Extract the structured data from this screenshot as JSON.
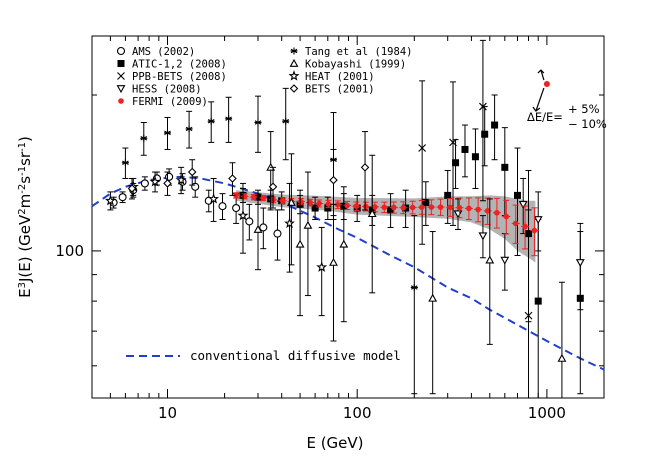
{
  "chart_data": {
    "type": "scatter",
    "title": "",
    "xlabel": "E (GeV)",
    "ylabel": "E³J(E) (GeV²m⁻²s⁻¹sr⁻¹)",
    "ylabel_parts": [
      "E",
      "3",
      "J(E)  (GeV",
      "2",
      "m",
      "-2",
      "s",
      "-1",
      "sr",
      "-1",
      ")"
    ],
    "xscale": "log",
    "yscale": "log",
    "xlim": [
      4,
      2000
    ],
    "ylim": [
      52,
      260
    ],
    "xticks": [
      {
        "value": 10,
        "label": "10"
      },
      {
        "value": 100,
        "label": "100"
      },
      {
        "value": 1000,
        "label": "1000"
      }
    ],
    "yticks": [
      {
        "value": 100,
        "label": "100"
      }
    ],
    "grid": false,
    "legend_position": "top-left",
    "series": [
      {
        "name": "AMS (2002)",
        "marker": "open-circle",
        "color": "#000000",
        "points": [
          [
            5.2,
            124,
            3
          ],
          [
            5.8,
            127,
            3
          ],
          [
            6.6,
            131,
            4
          ],
          [
            7.6,
            135,
            4
          ],
          [
            8.8,
            138,
            4
          ],
          [
            10.2,
            139,
            5
          ],
          [
            12,
            136,
            5
          ],
          [
            14,
            133,
            6
          ],
          [
            16.5,
            125,
            6
          ],
          [
            19.5,
            122,
            7
          ],
          [
            23,
            121,
            8
          ],
          [
            27,
            114,
            9
          ],
          [
            32,
            111,
            10
          ],
          [
            38,
            108,
            12
          ]
        ]
      },
      {
        "name": "ATIC-1,2 (2008)",
        "marker": "filled-square",
        "color": "#000000",
        "points": [
          [
            25,
            128,
            4
          ],
          [
            30,
            127,
            4
          ],
          [
            35,
            126,
            5
          ],
          [
            40,
            125,
            5
          ],
          [
            50,
            123,
            5
          ],
          [
            60,
            121,
            6
          ],
          [
            70,
            121,
            6
          ],
          [
            85,
            122,
            7
          ],
          [
            100,
            121,
            7
          ],
          [
            120,
            120,
            8
          ],
          [
            150,
            120,
            9
          ],
          [
            180,
            121,
            10
          ],
          [
            230,
            124,
            12
          ],
          [
            300,
            128,
            15
          ],
          [
            330,
            148,
            16
          ],
          [
            370,
            157,
            18
          ],
          [
            420,
            152,
            20
          ],
          [
            470,
            168,
            22
          ],
          [
            530,
            175,
            25
          ],
          [
            600,
            145,
            28
          ],
          [
            700,
            128,
            30
          ],
          [
            800,
            108,
            35
          ],
          [
            900,
            80,
            35
          ],
          [
            1500,
            81,
            28
          ]
        ]
      },
      {
        "name": "PPB-BETS (2008)",
        "marker": "cross",
        "color": "#000000",
        "points": [
          [
            220,
            158,
            55
          ],
          [
            320,
            162,
            50
          ],
          [
            460,
            190,
            65
          ],
          [
            800,
            75,
            45
          ]
        ]
      },
      {
        "name": "HESS (2008)",
        "marker": "open-down-triangle",
        "color": "#000000",
        "points": [
          [
            340,
            118,
            8
          ],
          [
            460,
            107,
            10
          ],
          [
            600,
            96,
            12
          ],
          [
            750,
            123,
            15
          ],
          [
            900,
            115,
            15
          ],
          [
            1500,
            95,
            18
          ]
        ]
      },
      {
        "name": "FERMI (2009)",
        "marker": "filled-circle",
        "color": "#ee2222",
        "points": [
          [
            23,
            128,
            1.5
          ],
          [
            25.5,
            127.5,
            1.5
          ],
          [
            28.5,
            127,
            1.5
          ],
          [
            32,
            126.5,
            1.5
          ],
          [
            36,
            125.5,
            1.6
          ],
          [
            40.5,
            125,
            1.6
          ],
          [
            45,
            124.5,
            1.7
          ],
          [
            50.5,
            124.5,
            1.7
          ],
          [
            56.5,
            124,
            1.8
          ],
          [
            63,
            123.5,
            1.9
          ],
          [
            70.5,
            123.2,
            2
          ],
          [
            79,
            122.8,
            2.1
          ],
          [
            88.5,
            122.4,
            2.2
          ],
          [
            99,
            122,
            2.3
          ],
          [
            111,
            121.8,
            2.4
          ],
          [
            124,
            121.6,
            2.6
          ],
          [
            139,
            121.4,
            2.8
          ],
          [
            156,
            121.3,
            3
          ],
          [
            175,
            121.2,
            3.2
          ],
          [
            196,
            121.3,
            3.4
          ],
          [
            219,
            121.4,
            3.7
          ],
          [
            246,
            121.5,
            4
          ],
          [
            275,
            121.5,
            4.4
          ],
          [
            309,
            121.4,
            4.8
          ],
          [
            346,
            121.2,
            5.3
          ],
          [
            388,
            120.8,
            5.8
          ],
          [
            434,
            120.2,
            6.4
          ],
          [
            487,
            119.5,
            7
          ],
          [
            545,
            118.5,
            7.8
          ],
          [
            611,
            116.5,
            8.7
          ],
          [
            685,
            113,
            9.6
          ],
          [
            767,
            111.5,
            10.6
          ],
          [
            860,
            109.5,
            11.6
          ]
        ]
      },
      {
        "name": "Tang et al (1984)",
        "marker": "asterisk",
        "color": "#000000",
        "points": [
          [
            6,
            148,
            10
          ],
          [
            7.5,
            165,
            12
          ],
          [
            10,
            169,
            12
          ],
          [
            13,
            172,
            14
          ],
          [
            17,
            178,
            16
          ],
          [
            21,
            180,
            18
          ],
          [
            30,
            177,
            22
          ],
          [
            42,
            178,
            28
          ],
          [
            75,
            150,
            35
          ],
          [
            200,
            85,
            32
          ]
        ]
      },
      {
        "name": "Kobayashi (1999)",
        "marker": "open-triangle",
        "color": "#000000",
        "points": [
          [
            30,
            110,
            18
          ],
          [
            35,
            145,
            25
          ],
          [
            45,
            124,
            30
          ],
          [
            50,
            103,
            28
          ],
          [
            55,
            112,
            30
          ],
          [
            75,
            95,
            28
          ],
          [
            85,
            103,
            30
          ],
          [
            120,
            118,
            35
          ],
          [
            250,
            81,
            28
          ],
          [
            500,
            96,
            30
          ],
          [
            1200,
            62,
            25
          ]
        ]
      },
      {
        "name": "HEAT (2001)",
        "marker": "open-star",
        "color": "#000000",
        "points": [
          [
            5,
            125,
            5
          ],
          [
            6.6,
            133,
            5
          ],
          [
            8.6,
            136,
            6
          ],
          [
            11.8,
            137,
            8
          ],
          [
            17.5,
            126,
            12
          ],
          [
            25,
            117,
            18
          ],
          [
            44,
            113,
            22
          ],
          [
            65,
            93,
            18
          ]
        ]
      },
      {
        "name": "BETS (2001)",
        "marker": "open-diamond",
        "color": "#000000",
        "points": [
          [
            6.5,
            132,
            6
          ],
          [
            10,
            135,
            7
          ],
          [
            13.5,
            142,
            8
          ],
          [
            22,
            138,
            10
          ],
          [
            36,
            133,
            12
          ],
          [
            75,
            137,
            20
          ],
          [
            110,
            145,
            25
          ]
        ]
      }
    ],
    "model_curve": {
      "name": "conventional diffusive model",
      "color": "#1f3fcc",
      "points": [
        [
          4,
          122
        ],
        [
          5,
          129
        ],
        [
          6,
          133
        ],
        [
          8,
          137
        ],
        [
          10,
          138.5
        ],
        [
          12,
          139
        ],
        [
          15,
          138
        ],
        [
          20,
          135
        ],
        [
          30,
          129
        ],
        [
          40,
          124
        ],
        [
          60,
          116
        ],
        [
          80,
          110
        ],
        [
          100,
          106
        ],
        [
          150,
          98
        ],
        [
          200,
          93
        ],
        [
          300,
          85
        ],
        [
          400,
          81
        ],
        [
          500,
          77
        ],
        [
          700,
          72
        ],
        [
          1000,
          67
        ],
        [
          1500,
          62
        ],
        [
          2000,
          59
        ]
      ]
    },
    "uncertainty_band": {
      "color": "#999999",
      "points": [
        [
          23,
          128,
          3
        ],
        [
          40,
          125,
          3.5
        ],
        [
          70,
          123.5,
          4
        ],
        [
          100,
          122,
          4.5
        ],
        [
          200,
          121.3,
          5
        ],
        [
          300,
          121.4,
          6
        ],
        [
          400,
          120.5,
          7
        ],
        [
          500,
          119,
          9
        ],
        [
          600,
          116.5,
          11
        ],
        [
          700,
          113,
          13
        ],
        [
          800,
          111,
          14
        ],
        [
          870,
          110,
          15
        ]
      ]
    },
    "annotation": {
      "label": "ΔE/E=",
      "plus": "+ 5%",
      "minus": "− 10%",
      "arrow_point": {
        "x": 1000,
        "y": 210
      },
      "color": "#ee2222"
    }
  }
}
